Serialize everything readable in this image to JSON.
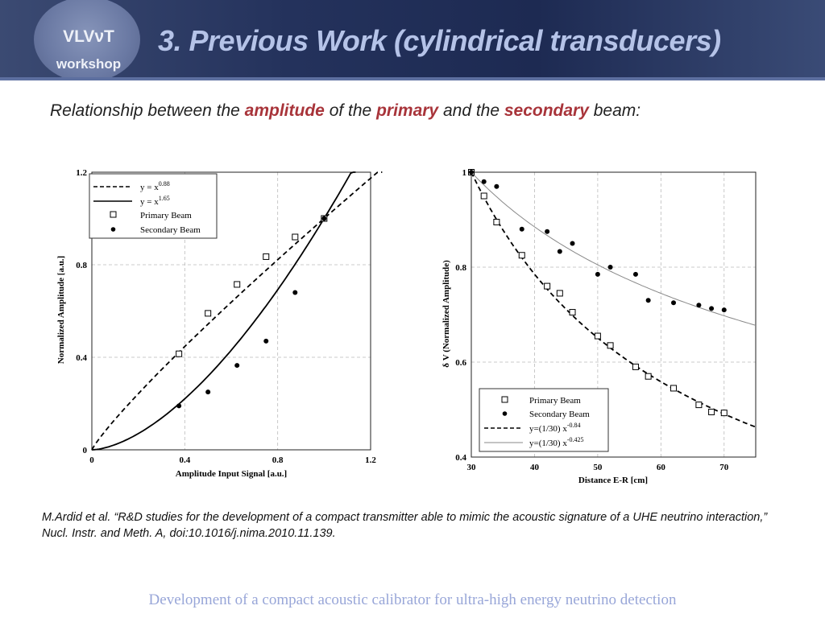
{
  "header": {
    "logo_line1": "VLVνT",
    "logo_line2": "workshop",
    "title": "3.  Previous Work (cylindrical transducers)"
  },
  "subtitle": {
    "part1": "Relationship between the ",
    "em1": "amplitude",
    "part2": " of the ",
    "em2": "primary",
    "part3": " and the ",
    "em3": "secondary",
    "part4": " beam:"
  },
  "colors": {
    "header_bg": "#24325c",
    "title": "#b5c3e8",
    "emphasis": "#a8343a",
    "footer": "#98a6d8"
  },
  "chart_data": [
    {
      "type": "scatter",
      "xlabel": "Amplitude Input Signal [a.u.]",
      "ylabel": "Normalized Amplitude [a.u.]",
      "xlim": [
        0,
        1.2
      ],
      "ylim": [
        0,
        1.2
      ],
      "xticks": [
        "0",
        "0.4",
        "0.8",
        "1.2"
      ],
      "yticks": [
        "0",
        "0.4",
        "0.8",
        "1.2"
      ],
      "grid": true,
      "legend_position": "top-left",
      "legend": {
        "fit1": "y =  x",
        "fit1_exp": "0.88",
        "fit2": "y =  x",
        "fit2_exp": "1.65",
        "primary": "Primary Beam",
        "secondary": "Secondary Beam"
      },
      "fits": [
        {
          "style": "dashed",
          "exponent": 0.88
        },
        {
          "style": "solid",
          "exponent": 1.65
        }
      ],
      "series": [
        {
          "name": "Primary Beam",
          "marker": "open-square",
          "points": [
            [
              0.375,
              0.415
            ],
            [
              0.5,
              0.59
            ],
            [
              0.625,
              0.715
            ],
            [
              0.75,
              0.835
            ],
            [
              0.875,
              0.92
            ],
            [
              1.0,
              1.0
            ]
          ]
        },
        {
          "name": "Secondary Beam",
          "marker": "filled-circle",
          "points": [
            [
              0.375,
              0.19
            ],
            [
              0.5,
              0.25
            ],
            [
              0.625,
              0.365
            ],
            [
              0.75,
              0.47
            ],
            [
              0.875,
              0.68
            ],
            [
              1.0,
              1.0
            ]
          ]
        }
      ]
    },
    {
      "type": "scatter",
      "xlabel": "Distance E-R [cm]",
      "ylabel": "δ V (Normalized Amplitude)",
      "xlim": [
        30,
        75
      ],
      "ylim": [
        0.4,
        1.0
      ],
      "xticks": [
        "30",
        "40",
        "50",
        "60",
        "70"
      ],
      "yticks": [
        "0.4",
        "0.6",
        "0.8",
        "1"
      ],
      "grid": true,
      "legend_position": "bottom-left",
      "legend": {
        "primary": "Primary Beam",
        "secondary": "Secondary Beam",
        "fit1": "y=(1/30) x",
        "fit1_exp": "-0.84",
        "fit2": "y=(1/30) x",
        "fit2_exp": "-0.425"
      },
      "fits": [
        {
          "style": "dashed",
          "exponent": -0.84
        },
        {
          "style": "solid-gray",
          "exponent": -0.425
        }
      ],
      "series": [
        {
          "name": "Primary Beam",
          "marker": "open-square",
          "points": [
            [
              30,
              1.0
            ],
            [
              32,
              0.95
            ],
            [
              34,
              0.895
            ],
            [
              38,
              0.825
            ],
            [
              42,
              0.76
            ],
            [
              44,
              0.745
            ],
            [
              46,
              0.705
            ],
            [
              50,
              0.655
            ],
            [
              52,
              0.635
            ],
            [
              56,
              0.59
            ],
            [
              58,
              0.57
            ],
            [
              62,
              0.545
            ],
            [
              66,
              0.51
            ],
            [
              68,
              0.495
            ],
            [
              70,
              0.493
            ]
          ]
        },
        {
          "name": "Secondary Beam",
          "marker": "filled-circle",
          "points": [
            [
              30,
              1.0
            ],
            [
              32,
              0.98
            ],
            [
              34,
              0.97
            ],
            [
              38,
              0.88
            ],
            [
              42,
              0.875
            ],
            [
              44,
              0.833
            ],
            [
              46,
              0.85
            ],
            [
              50,
              0.785
            ],
            [
              52,
              0.8
            ],
            [
              56,
              0.785
            ],
            [
              58,
              0.73
            ],
            [
              62,
              0.725
            ],
            [
              66,
              0.72
            ],
            [
              68,
              0.713
            ],
            [
              70,
              0.71
            ]
          ]
        }
      ]
    }
  ],
  "reference": "M.Ardid et al. “R&D studies for the development of a compact transmitter able to mimic the acoustic signature of a UHE neutrino interaction,” Nucl. Instr. and Meth. A, doi:10.1016/j.nima.2010.11.139.",
  "footer": "Development of a compact acoustic calibrator for ultra-high energy neutrino detection"
}
